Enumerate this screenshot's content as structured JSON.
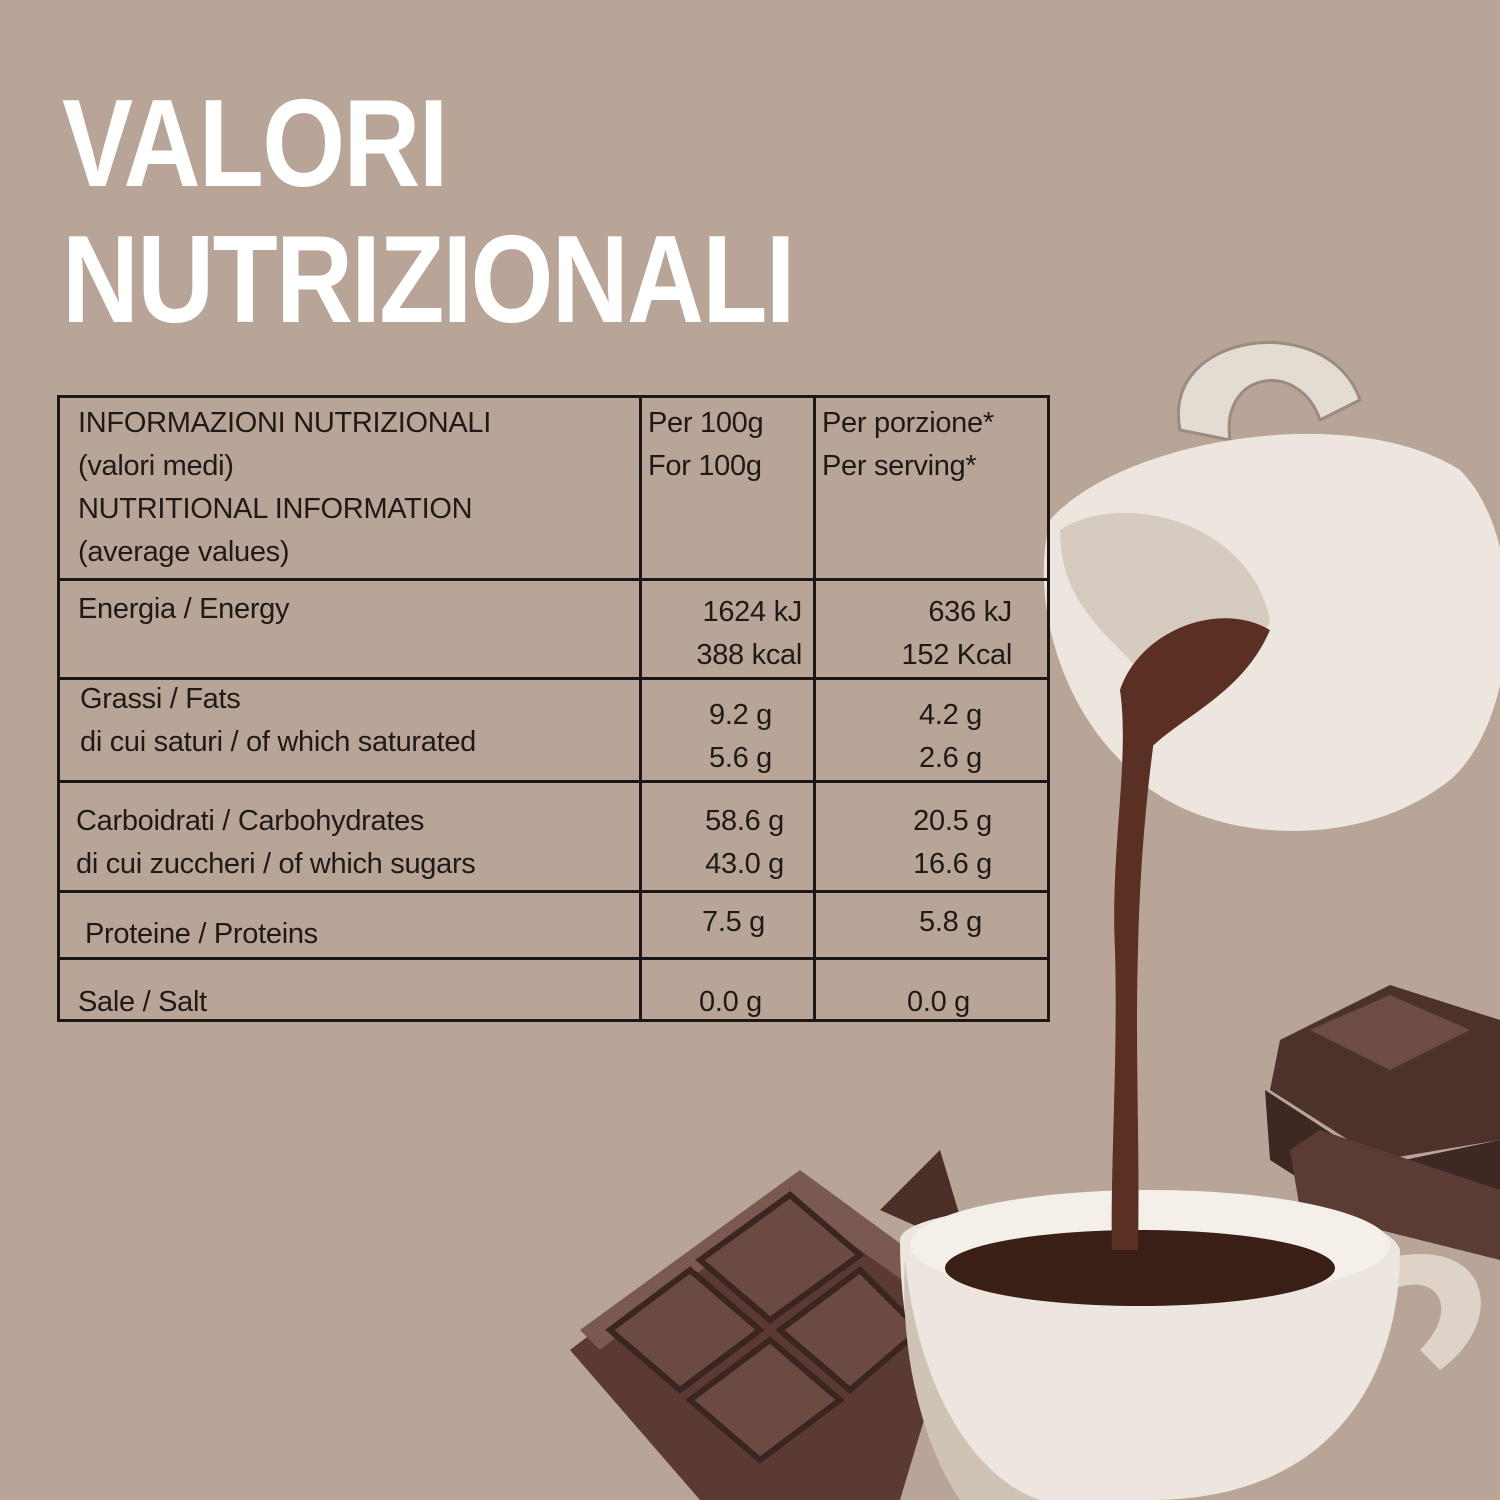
{
  "title": {
    "line1": "VALORI",
    "line2": "NUTRIZIONALI"
  },
  "table": {
    "header": {
      "label": [
        "INFORMAZIONI NUTRIZIONALI",
        "(valori medi)",
        "NUTRITIONAL INFORMATION",
        "(average values)"
      ],
      "col1": [
        "Per 100g",
        "For 100g"
      ],
      "col2": [
        "Per porzione*",
        "Per serving*"
      ]
    },
    "rows": [
      {
        "label": [
          "Energia / Energy"
        ],
        "per100": [
          "1624 kJ",
          "388 kcal"
        ],
        "serving": [
          "636 kJ",
          "152 Kcal"
        ]
      },
      {
        "label": [
          "Grassi / Fats",
          "di cui saturi / of which saturated"
        ],
        "per100": [
          "9.2 g",
          "5.6 g"
        ],
        "serving": [
          "4.2 g",
          "2.6 g"
        ]
      },
      {
        "label": [
          "Carboidrati / Carbohydrates",
          "di cui zuccheri / of which sugars"
        ],
        "per100": [
          "58.6 g",
          "43.0 g"
        ],
        "serving": [
          "20.5 g",
          "16.6 g"
        ]
      },
      {
        "label": [
          "Proteine / Proteins"
        ],
        "per100": [
          "7.5 g"
        ],
        "serving": [
          "5.8 g"
        ]
      },
      {
        "label": [
          "Sale / Salt"
        ],
        "per100": [
          "0.0 g"
        ],
        "serving": [
          "0.0 g"
        ]
      }
    ]
  },
  "colors": {
    "background": "#b9a597",
    "title": "#ffffff",
    "text": "#1f1a17",
    "chocolate": "#4a2f28",
    "porcelain": "#ece6de"
  },
  "illustration": [
    "milk-jug-icon",
    "chocolate-stream",
    "cup-icon",
    "chocolate-bar-icon"
  ]
}
